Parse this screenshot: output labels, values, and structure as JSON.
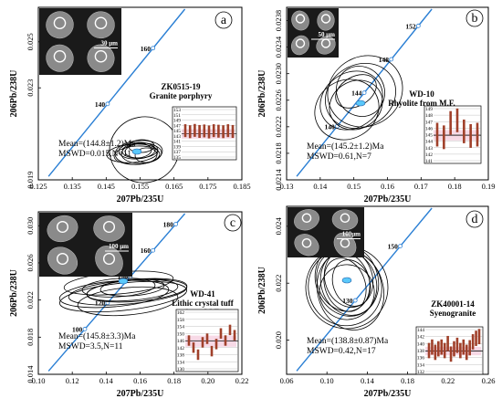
{
  "chart_data": [
    {
      "type": "scatter",
      "panel_label": "a",
      "xlabel": "207Pb/235U",
      "ylabel": "206Pb/238U",
      "xlim": [
        0.125,
        0.185
      ],
      "ylim": [
        0.019,
        0.0265
      ],
      "x_ticks": [
        "0.125",
        "0.135",
        "0.145",
        "0.155",
        "0.165",
        "0.175",
        "0.185"
      ],
      "y_ticks": [
        "0.019",
        "0.023",
        "0.025"
      ],
      "concordia_labels": [
        "140",
        "160"
      ],
      "sample": "ZK0515-19",
      "lithology": "Granite porphyry",
      "mean": "Mean=(144.8±1.2)Ma",
      "mswd": "MSWD=0.015,N=11",
      "scale_bar": "30 μm",
      "inset_ticks": [
        "153",
        "151",
        "149",
        "147",
        "145",
        "143",
        "141",
        "139",
        "137",
        "135"
      ],
      "inset_values": [
        145.0,
        144.6,
        145.1,
        144.7,
        144.9,
        144.5,
        145.0,
        144.8,
        144.6,
        145.0,
        144.7
      ],
      "ellipse_center": [
        0.153,
        0.02268
      ]
    },
    {
      "type": "scatter",
      "panel_label": "b",
      "xlabel": "207Pb/235U",
      "ylabel": "206Pb/238U",
      "xlim": [
        0.13,
        0.19
      ],
      "ylim": [
        0.0214,
        0.024
      ],
      "x_ticks": [
        "0.13",
        "0.14",
        "0.15",
        "0.16",
        "0.17",
        "0.18",
        "0.19"
      ],
      "y_ticks": [
        "0.0214",
        "0.0218",
        "0.0222",
        "0.0226",
        "0.0230",
        "0.0234",
        "0.0238"
      ],
      "concordia_labels": [
        "140",
        "144",
        "148",
        "152"
      ],
      "sample": "WD-10",
      "lithology": "Rhyolite from M.F.",
      "mean": "Mean=(145.2±1.2)Ma",
      "mswd": "MSWD=0.61,N=7",
      "scale_bar": "50 μm",
      "inset_ticks": [
        "149",
        "148",
        "147",
        "146",
        "145",
        "144",
        "143",
        "142",
        "141"
      ],
      "inset_values": [
        145.0,
        144.6,
        146.8,
        147.2,
        145.5,
        144.8,
        145.0
      ],
      "ellipse_center": [
        0.1545,
        0.02278
      ]
    },
    {
      "type": "scatter",
      "panel_label": "c",
      "xlabel": "207Pb/235U",
      "ylabel": "206Pb/238U",
      "xlim": [
        0.1,
        0.22
      ],
      "ylim": [
        0.014,
        0.0315
      ],
      "x_ticks": [
        "0.10",
        "0.12",
        "0.14",
        "0.16",
        "0.18",
        "0.20",
        "0.22"
      ],
      "y_ticks": [
        "0.014",
        "0.018",
        "0.022",
        "0.026",
        "0.030"
      ],
      "concordia_labels": [
        "100",
        "120",
        "140",
        "160",
        "180"
      ],
      "sample": "WD-41",
      "lithology": "Lithic crystal tuff",
      "lithology2": "from M.F.",
      "mean": "Mean=(145.8±3.3)Ma",
      "mswd": "MSWD=3.5,N=11",
      "scale_bar": "100 μm",
      "inset_ticks": [
        "162",
        "158",
        "154",
        "150",
        "146",
        "142",
        "138",
        "134",
        "130"
      ],
      "inset_values": [
        146,
        142,
        138,
        145,
        147,
        140,
        144,
        150,
        146,
        152,
        149
      ],
      "ellipse_center": [
        0.153,
        0.0228
      ]
    },
    {
      "type": "scatter",
      "panel_label": "d",
      "xlabel": "207Pb/235U",
      "ylabel": "206Pb/238U",
      "xlim": [
        0.06,
        0.26
      ],
      "ylim": [
        0.0188,
        0.0247
      ],
      "x_ticks": [
        "0.06",
        "0.10",
        "0.14",
        "0.18",
        "0.22",
        "0.26"
      ],
      "y_ticks": [
        "0.020",
        "0.022",
        "0.024"
      ],
      "concordia_labels": [
        "130",
        "150"
      ],
      "sample": "ZK40001-14",
      "lithology": "Syenogranite",
      "mean": "Mean=(138.8±0.87)Ma",
      "mswd": "MSWD=0.42,N=17",
      "scale_bar": "100μm",
      "inset_ticks": [
        "144",
        "142",
        "140",
        "138",
        "136",
        "134",
        "132"
      ],
      "inset_values": [
        138,
        139,
        137.5,
        138.5,
        139,
        138,
        140,
        137,
        138.5,
        139.5,
        138,
        139,
        137.5,
        138.8,
        140.5,
        141.5,
        142
      ],
      "ellipse_center": [
        0.147,
        0.0217
      ]
    }
  ]
}
